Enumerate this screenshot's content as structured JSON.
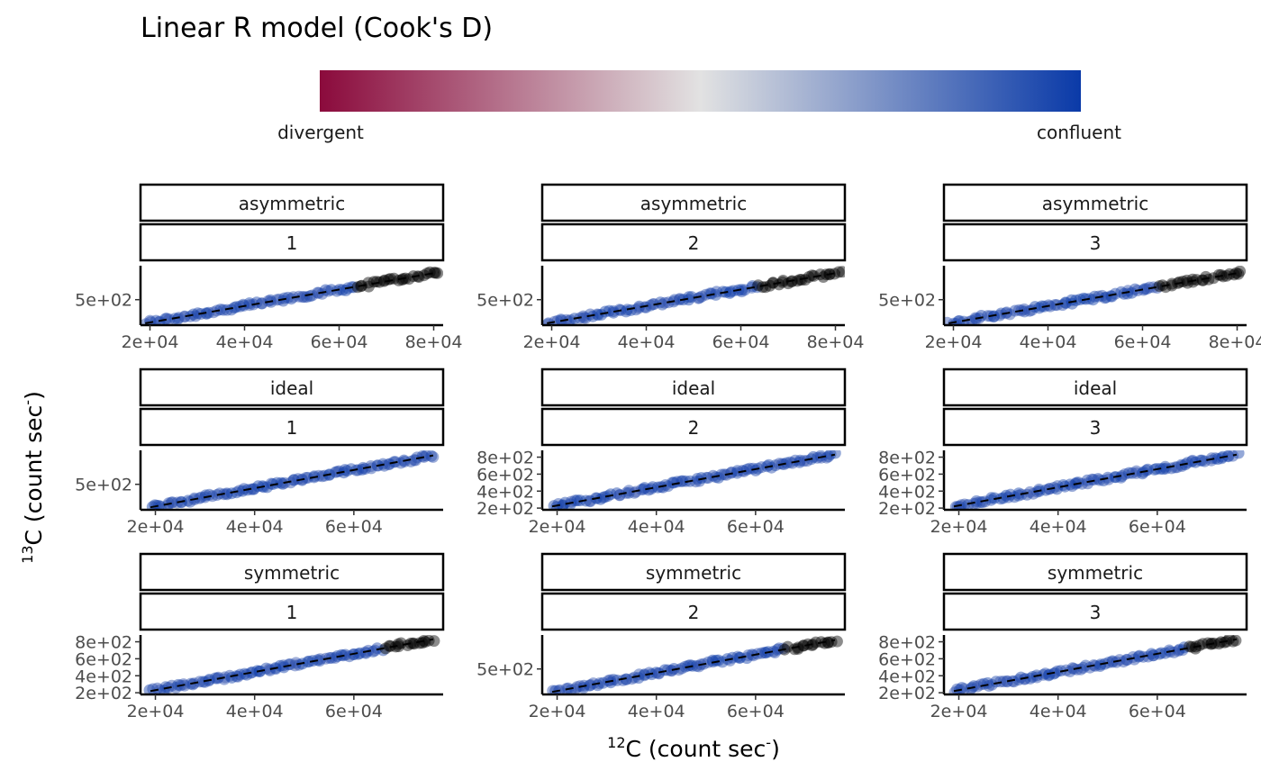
{
  "chart_data": {
    "type": "scatter",
    "title": "Linear R model (Cook's D)",
    "legend": {
      "position": "top",
      "low_label": "divergent",
      "high_label": "confluent",
      "colors": [
        "#8b0a3c",
        "#e2e2e2",
        "#0a3aa8"
      ]
    },
    "xlabel": {
      "sup": "12",
      "main": "C (count sec",
      "sup2": "-",
      "tail": ")"
    },
    "ylabel": {
      "sup": "13",
      "main": "C (count sec",
      "sup2": "-",
      "tail": ")"
    },
    "line_color": "#000000",
    "panels": [
      {
        "facet": "asymmetric",
        "sub": "1",
        "xlim": [
          18000,
          82000
        ],
        "ylim": [
          230,
          860
        ],
        "xticks": [
          20000,
          40000,
          60000,
          80000
        ],
        "xtick_labels": [
          "2e+04",
          "4e+04",
          "6e+04",
          "8e+04"
        ],
        "yticks": [
          500
        ],
        "ytick_labels": [
          "5e+02"
        ],
        "x_range": [
          19000,
          81000
        ],
        "y_start": 250,
        "y_end": 790,
        "divergent_from": 0.72,
        "divergent_center": 0.87,
        "divergent_strength": 0.55
      },
      {
        "facet": "asymmetric",
        "sub": "2",
        "xlim": [
          18000,
          82000
        ],
        "ylim": [
          230,
          860
        ],
        "xticks": [
          20000,
          40000,
          60000,
          80000
        ],
        "xtick_labels": [
          "2e+04",
          "4e+04",
          "6e+04",
          "8e+04"
        ],
        "yticks": [
          500
        ],
        "ytick_labels": [
          "5e+02"
        ],
        "x_range": [
          19000,
          81000
        ],
        "y_start": 250,
        "y_end": 790,
        "divergent_from": 0.72,
        "divergent_center": 0.88,
        "divergent_strength": 0.95
      },
      {
        "facet": "asymmetric",
        "sub": "3",
        "xlim": [
          18000,
          82000
        ],
        "ylim": [
          230,
          860
        ],
        "xticks": [
          20000,
          40000,
          60000,
          80000
        ],
        "xtick_labels": [
          "2e+04",
          "4e+04",
          "6e+04",
          "8e+04"
        ],
        "yticks": [
          500
        ],
        "ytick_labels": [
          "5e+02"
        ],
        "x_range": [
          19000,
          81000
        ],
        "y_start": 250,
        "y_end": 790,
        "divergent_from": 0.72,
        "divergent_center": 0.87,
        "divergent_strength": 0.75
      },
      {
        "facet": "ideal",
        "sub": "1",
        "xlim": [
          17000,
          78000
        ],
        "ylim": [
          200,
          900
        ],
        "xticks": [
          20000,
          40000,
          60000
        ],
        "xtick_labels": [
          "2e+04",
          "4e+04",
          "6e+04"
        ],
        "yticks": [
          500
        ],
        "ytick_labels": [
          "5e+02"
        ],
        "x_range": [
          19000,
          76000
        ],
        "y_start": 230,
        "y_end": 840,
        "divergent_from": 1.1,
        "divergent_center": 1.2,
        "divergent_strength": 0.0
      },
      {
        "facet": "ideal",
        "sub": "2",
        "xlim": [
          17000,
          78000
        ],
        "ylim": [
          180,
          880
        ],
        "xticks": [
          20000,
          40000,
          60000
        ],
        "xtick_labels": [
          "2e+04",
          "4e+04",
          "6e+04"
        ],
        "yticks": [
          200,
          400,
          600,
          800
        ],
        "ytick_labels": [
          "2e+02",
          "4e+02",
          "6e+02",
          "8e+02"
        ],
        "x_range": [
          19000,
          76000
        ],
        "y_start": 220,
        "y_end": 830,
        "divergent_from": 1.1,
        "divergent_center": 1.2,
        "divergent_strength": 0.0
      },
      {
        "facet": "ideal",
        "sub": "3",
        "xlim": [
          17000,
          78000
        ],
        "ylim": [
          180,
          880
        ],
        "xticks": [
          20000,
          40000,
          60000
        ],
        "xtick_labels": [
          "2e+04",
          "4e+04",
          "6e+04"
        ],
        "yticks": [
          200,
          400,
          600,
          800
        ],
        "ytick_labels": [
          "2e+02",
          "4e+02",
          "6e+02",
          "8e+02"
        ],
        "x_range": [
          19000,
          76000
        ],
        "y_start": 220,
        "y_end": 830,
        "divergent_from": 1.1,
        "divergent_center": 1.2,
        "divergent_strength": 0.0
      },
      {
        "facet": "symmetric",
        "sub": "1",
        "xlim": [
          17000,
          78000
        ],
        "ylim": [
          180,
          880
        ],
        "xticks": [
          20000,
          40000,
          60000
        ],
        "xtick_labels": [
          "2e+04",
          "4e+04",
          "6e+04"
        ],
        "yticks": [
          200,
          400,
          600,
          800
        ],
        "ytick_labels": [
          "2e+02",
          "4e+02",
          "6e+02",
          "8e+02"
        ],
        "x_range": [
          19000,
          76000
        ],
        "y_start": 220,
        "y_end": 830,
        "divergent_from": 0.82,
        "divergent_center": 0.93,
        "divergent_strength": 0.25
      },
      {
        "facet": "symmetric",
        "sub": "2",
        "xlim": [
          17000,
          78000
        ],
        "ylim": [
          200,
          900
        ],
        "xticks": [
          20000,
          40000,
          60000
        ],
        "xtick_labels": [
          "2e+04",
          "4e+04",
          "6e+04"
        ],
        "yticks": [
          500
        ],
        "ytick_labels": [
          "5e+02"
        ],
        "x_range": [
          19000,
          76000
        ],
        "y_start": 230,
        "y_end": 840,
        "divergent_from": 0.82,
        "divergent_center": 0.93,
        "divergent_strength": 0.2
      },
      {
        "facet": "symmetric",
        "sub": "3",
        "xlim": [
          17000,
          78000
        ],
        "ylim": [
          180,
          880
        ],
        "xticks": [
          20000,
          40000,
          60000
        ],
        "xtick_labels": [
          "2e+04",
          "4e+04",
          "6e+04"
        ],
        "yticks": [
          200,
          400,
          600,
          800
        ],
        "ytick_labels": [
          "2e+02",
          "4e+02",
          "6e+02",
          "8e+02"
        ],
        "x_range": [
          19000,
          76000
        ],
        "y_start": 220,
        "y_end": 830,
        "divergent_from": 0.82,
        "divergent_center": 0.93,
        "divergent_strength": 0.25
      }
    ]
  }
}
